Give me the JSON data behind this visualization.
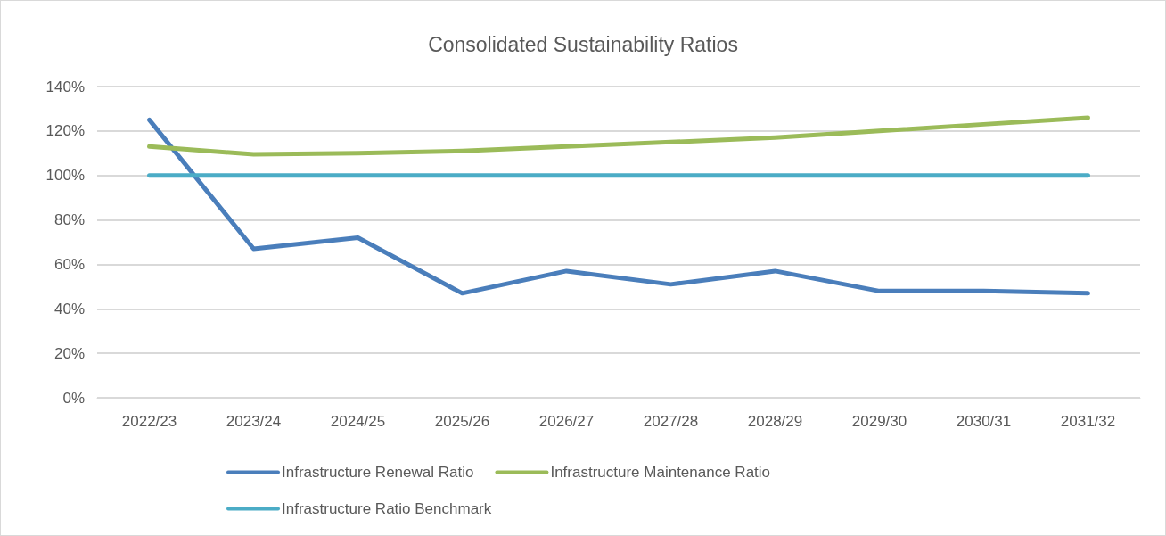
{
  "chart_data": {
    "type": "line",
    "title": "Consolidated Sustainability Ratios",
    "categories": [
      "2022/23",
      "2023/24",
      "2024/25",
      "2025/26",
      "2026/27",
      "2027/28",
      "2028/29",
      "2029/30",
      "2030/31",
      "2031/32"
    ],
    "series": [
      {
        "name": "Infrastructure Renewal Ratio",
        "color": "#4a7ebb",
        "values": [
          125,
          67,
          72,
          47,
          57,
          51,
          57,
          48,
          48,
          47
        ]
      },
      {
        "name": "Infrastructure Maintenance Ratio",
        "color": "#9bbb59",
        "values": [
          113,
          109.5,
          110,
          111,
          113,
          115,
          117,
          120,
          123,
          126
        ]
      },
      {
        "name": "Infrastructure Ratio Benchmark",
        "color": "#4bacc6",
        "values": [
          100,
          100,
          100,
          100,
          100,
          100,
          100,
          100,
          100,
          100
        ]
      }
    ],
    "ylim": [
      0,
      140
    ],
    "yticks": [
      {
        "value": 0,
        "label": "0%"
      },
      {
        "value": 20,
        "label": "20%"
      },
      {
        "value": 40,
        "label": "40%"
      },
      {
        "value": 60,
        "label": "60%"
      },
      {
        "value": 80,
        "label": "80%"
      },
      {
        "value": 100,
        "label": "100%"
      },
      {
        "value": 120,
        "label": "120%"
      },
      {
        "value": 140,
        "label": "140%"
      }
    ],
    "grid": "y",
    "legend": "bottom",
    "marker": "none",
    "line_style": "solid"
  }
}
